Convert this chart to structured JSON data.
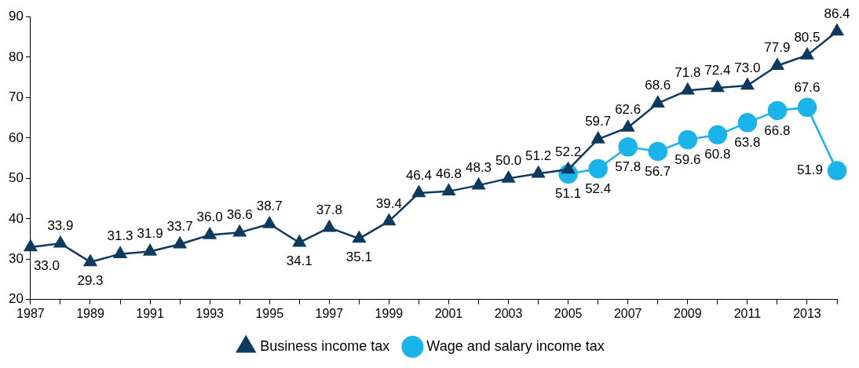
{
  "chart_data": {
    "type": "line",
    "categories": [
      "1987",
      null,
      "1989",
      null,
      "1991",
      null,
      "1993",
      null,
      "1995",
      null,
      "1997",
      null,
      "1999",
      null,
      "2001",
      null,
      "2003",
      null,
      "2005",
      null,
      "2007",
      null,
      "2009",
      null,
      "2011",
      null,
      "2013",
      null
    ],
    "ylim": [
      20,
      90
    ],
    "yticks": [
      20,
      30,
      40,
      50,
      60,
      70,
      80,
      90
    ],
    "grid": false,
    "legend": "bottom",
    "data_labels": true,
    "series": [
      {
        "name": "Business income tax",
        "color": "#0d3a5e",
        "marker": "triangle",
        "values": [
          33.0,
          33.9,
          29.3,
          31.3,
          31.9,
          33.7,
          36.0,
          36.6,
          38.7,
          34.1,
          37.8,
          35.1,
          39.4,
          46.4,
          46.8,
          48.3,
          50.0,
          51.2,
          52.2,
          59.7,
          62.6,
          68.6,
          71.8,
          72.4,
          73.0,
          77.9,
          80.5,
          86.4
        ],
        "value_labels": [
          "33.0",
          "33.9",
          "29.3",
          "31.3",
          "31.9",
          "33.7",
          "36.0",
          "36.6",
          "38.7",
          "34.1",
          "37.8",
          "35.1",
          "39.4",
          "46.4",
          "46.8",
          "48.3",
          "50.0",
          "51.2",
          "52.2",
          "59.7",
          "62.6",
          "68.6",
          "71.8",
          "72.4",
          "73.0",
          "77.9",
          "80.5",
          "86.4"
        ]
      },
      {
        "name": "Wage and salary income tax",
        "color": "#1ab4ea",
        "marker": "circle",
        "values": [
          null,
          null,
          null,
          null,
          null,
          null,
          null,
          null,
          null,
          null,
          null,
          null,
          null,
          null,
          null,
          null,
          null,
          null,
          51.1,
          52.4,
          57.8,
          56.7,
          59.6,
          60.8,
          63.8,
          66.8,
          67.6,
          51.9
        ],
        "value_labels": [
          null,
          null,
          null,
          null,
          null,
          null,
          null,
          null,
          null,
          null,
          null,
          null,
          null,
          null,
          null,
          null,
          null,
          null,
          "51.1",
          "52.4",
          "57.8",
          "56.7",
          "59.6",
          "60.8",
          "63.8",
          "66.8",
          "67.6",
          "51.9"
        ]
      }
    ]
  }
}
